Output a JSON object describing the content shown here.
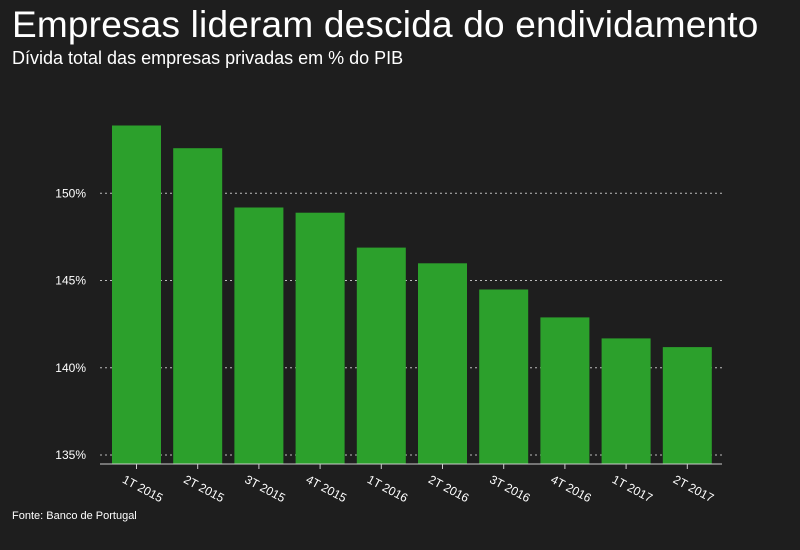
{
  "chart_data": {
    "type": "bar",
    "title": "Empresas lideram descida do endividamento",
    "subtitle": "Dívida total das empresas privadas em % do PIB",
    "source": "Fonte: Banco de Portugal",
    "categories": [
      "1T 2015",
      "2T 2015",
      "3T 2015",
      "4T 2015",
      "1T 2016",
      "2T 2016",
      "3T 2016",
      "4T 2016",
      "1T 2017",
      "2T 2017"
    ],
    "values": [
      154.4,
      153.1,
      149.7,
      149.4,
      147.4,
      146.5,
      145.0,
      143.4,
      142.2,
      141.7
    ],
    "ylim": [
      135,
      155
    ],
    "yticks": [
      135,
      140,
      145,
      150
    ],
    "ytick_labels": [
      "135%",
      "140%",
      "145%",
      "150%"
    ],
    "xlabel": "",
    "ylabel": "",
    "grid": true,
    "bar_color": "#2ca02c",
    "grid_color": "#bbbbbb",
    "background_color": "#1e1e1e"
  }
}
